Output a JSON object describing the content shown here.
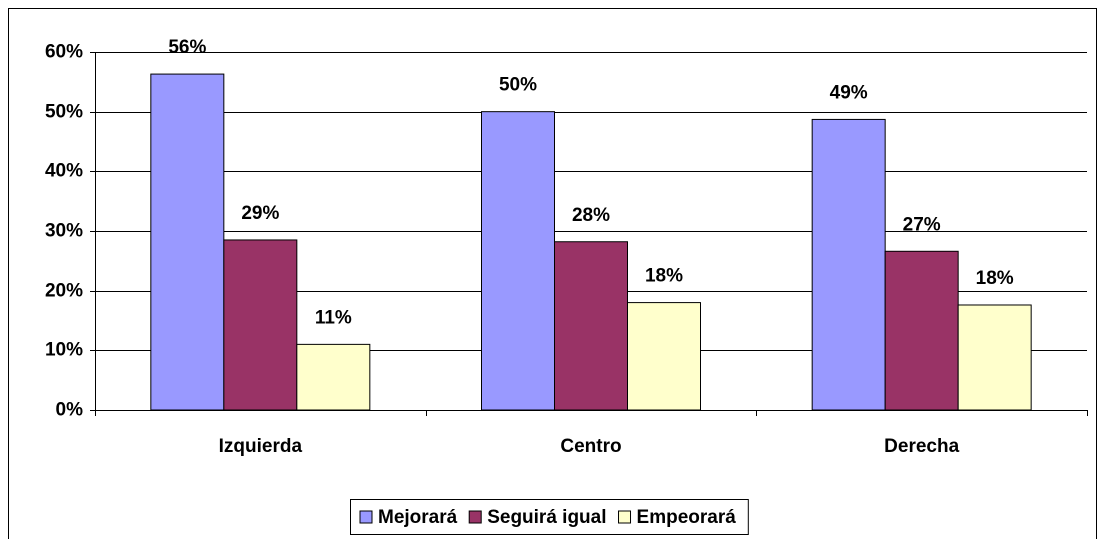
{
  "chart_data": {
    "type": "bar",
    "categories": [
      "Izquierda",
      "Centro",
      "Derecha"
    ],
    "series": [
      {
        "name": "Mejorará",
        "color": "#9999ff",
        "values": [
          56.3,
          50,
          48.7
        ],
        "value_labels": [
          "56%",
          "50%",
          "49%"
        ]
      },
      {
        "name": "Seguirá igual",
        "color": "#993366",
        "values": [
          28.5,
          28.2,
          26.6
        ],
        "value_labels": [
          "29%",
          "28%",
          "27%"
        ]
      },
      {
        "name": "Empeorará",
        "color": "#ffffcc",
        "values": [
          11,
          18,
          17.6
        ],
        "value_labels": [
          "11%",
          "18%",
          "18%"
        ]
      }
    ],
    "ylim": [
      0,
      60
    ],
    "yticks": [
      {
        "value": 0,
        "label": "0%"
      },
      {
        "value": 10,
        "label": "10%"
      },
      {
        "value": 20,
        "label": "20%"
      },
      {
        "value": 30,
        "label": "30%"
      },
      {
        "value": 40,
        "label": "40%"
      },
      {
        "value": 50,
        "label": "50%"
      },
      {
        "value": 60,
        "label": "60%"
      }
    ],
    "grid": true,
    "legend": "bottom"
  }
}
